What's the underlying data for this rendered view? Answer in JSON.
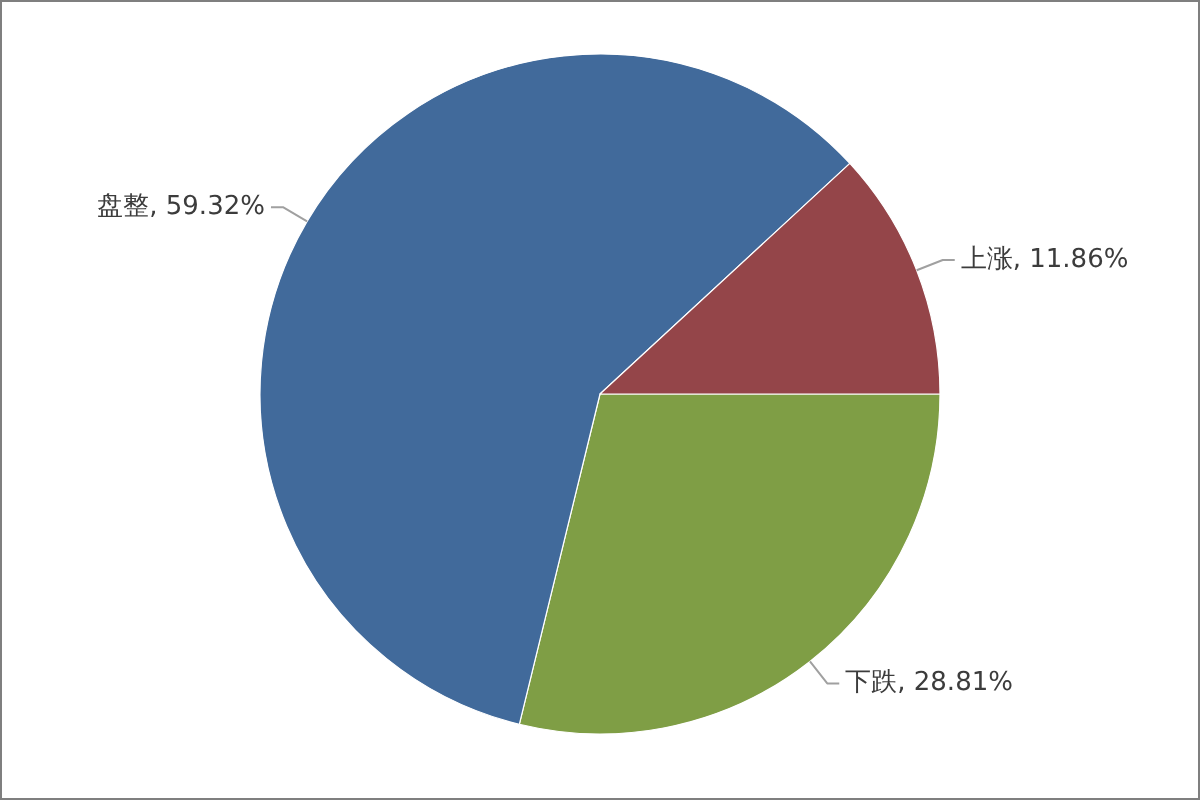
{
  "chart_data": {
    "type": "pie",
    "categories": [
      "下跌",
      "盘整",
      "上涨"
    ],
    "values": [
      28.81,
      59.32,
      11.86
    ],
    "colors": [
      "#7f9e45",
      "#416a9b",
      "#944549"
    ],
    "value_labels": [
      "28.81%",
      "59.32%",
      "11.86%"
    ]
  }
}
